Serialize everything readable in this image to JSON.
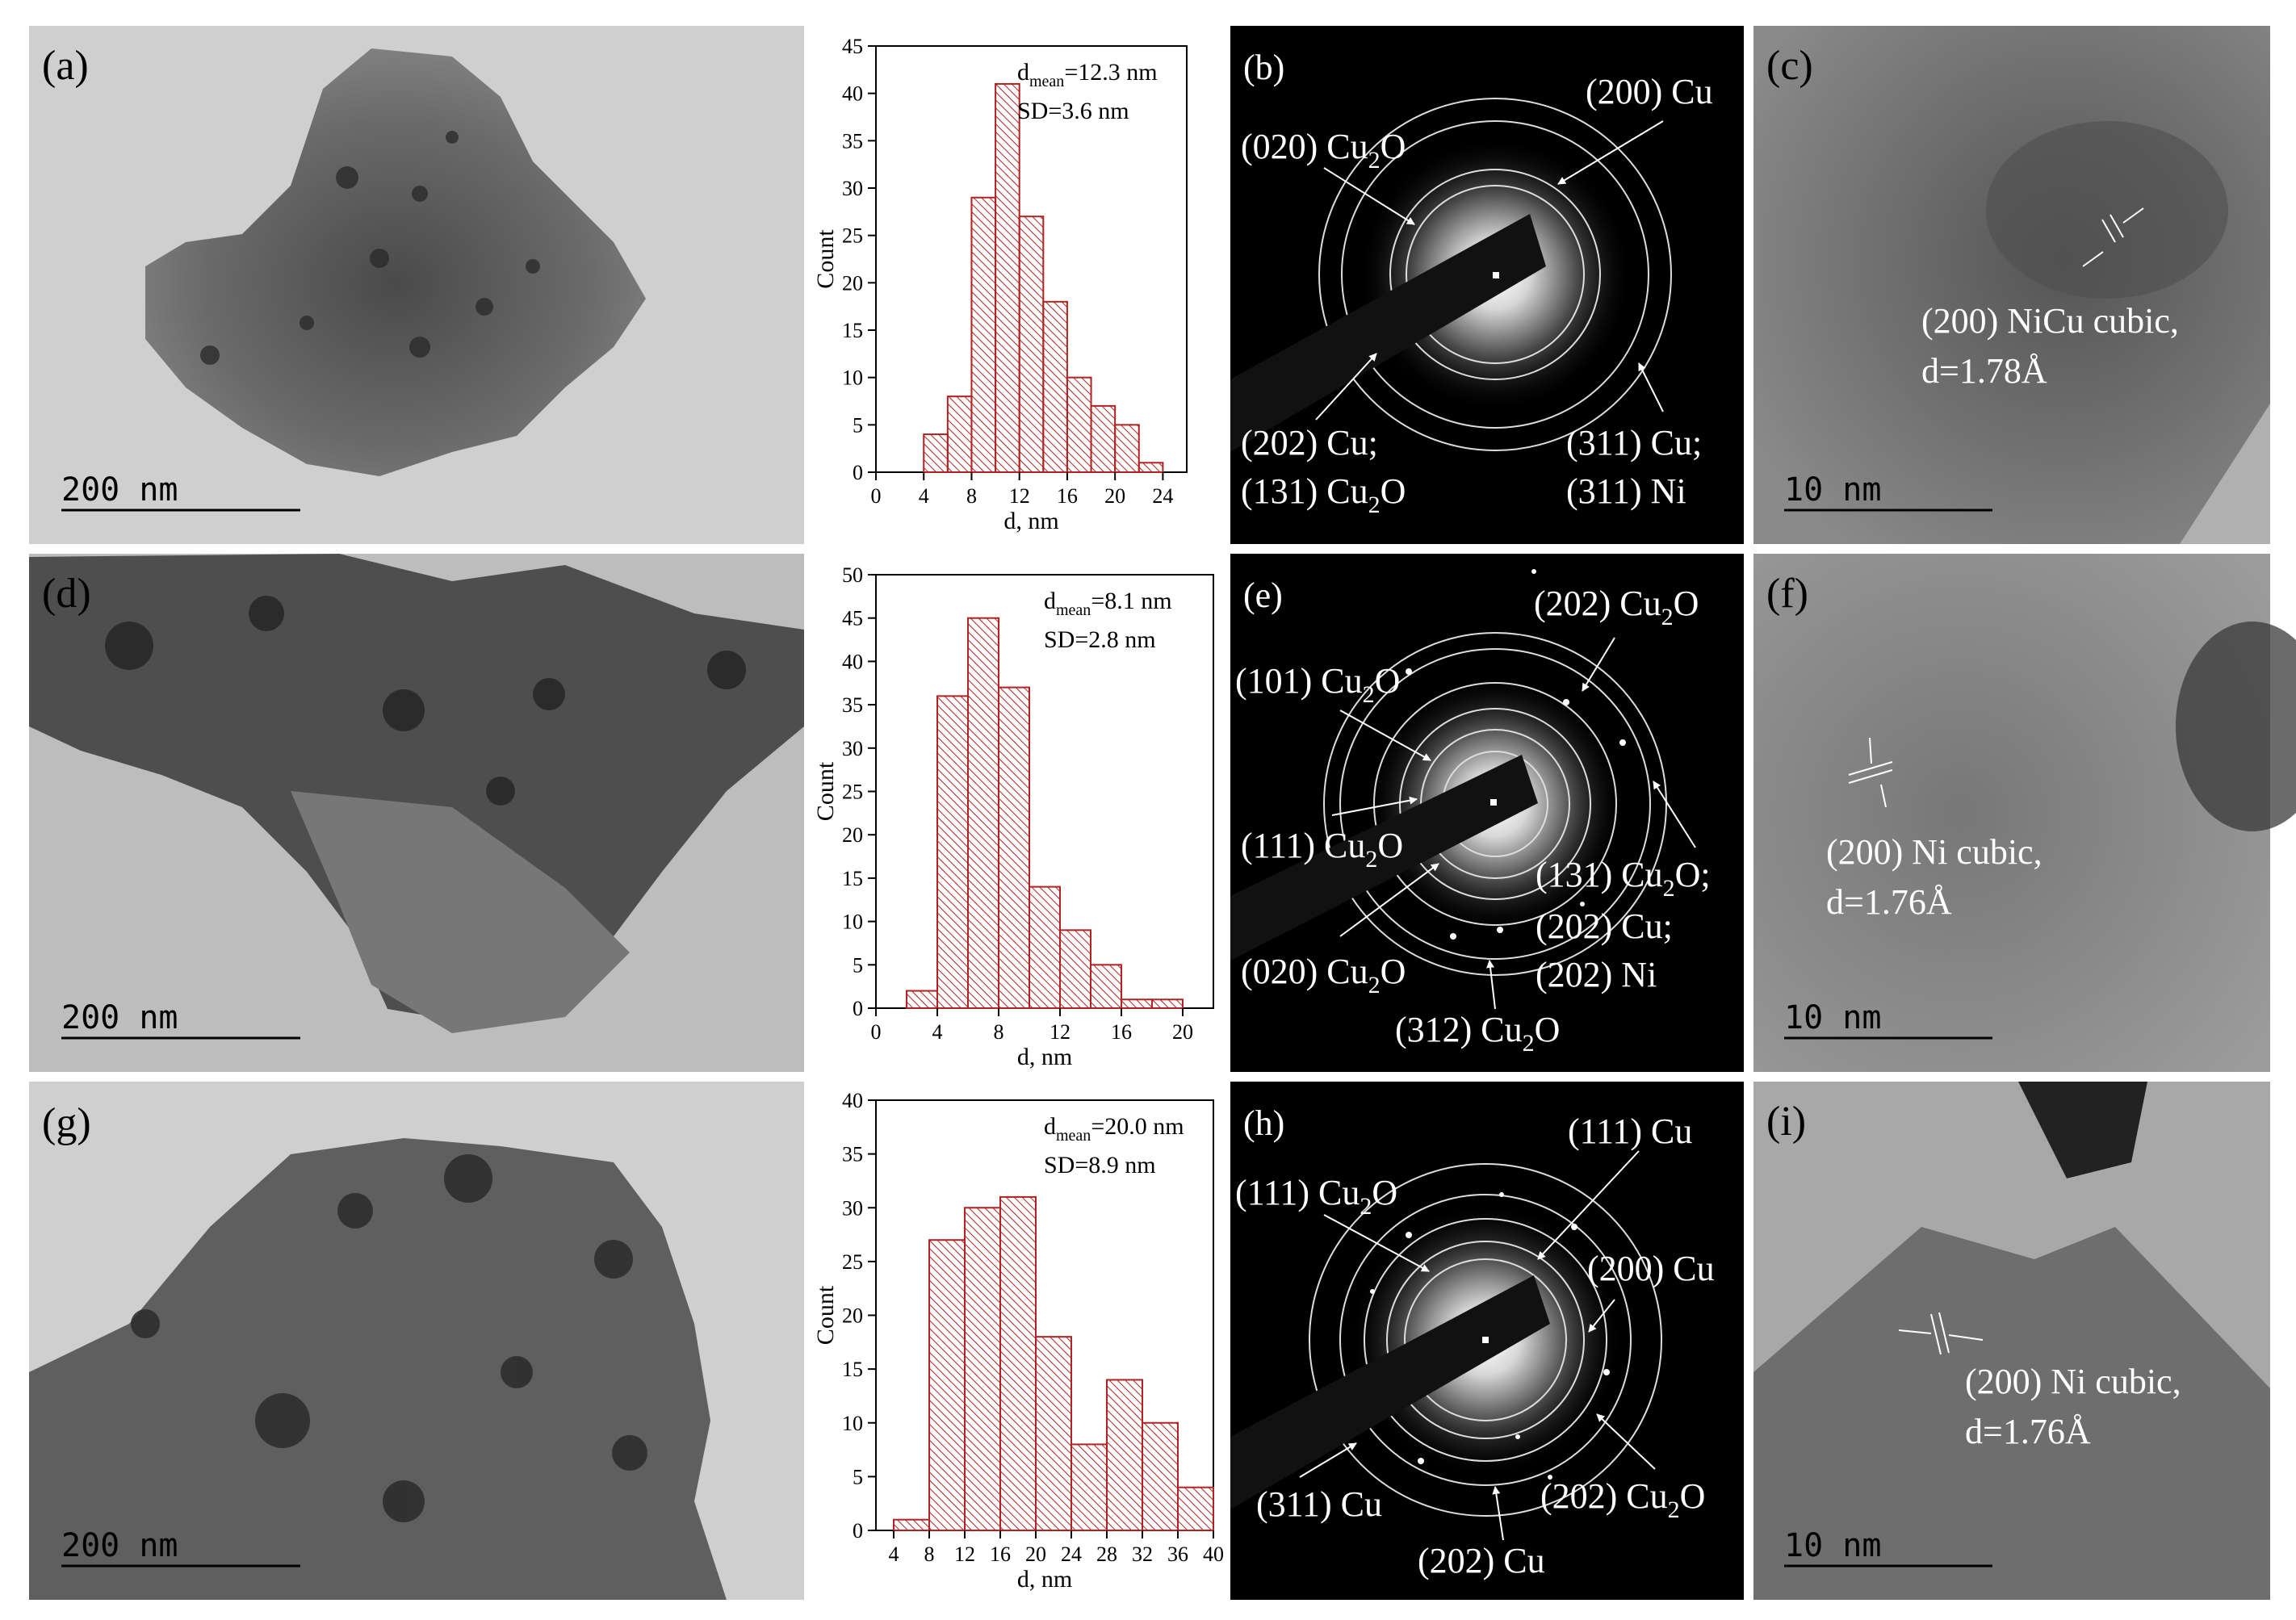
{
  "tem_panels": [
    {
      "label": "(a)",
      "scale": "200 nm"
    },
    {
      "label": "(d)",
      "scale": "200 nm"
    },
    {
      "label": "(g)",
      "scale": "200 nm"
    }
  ],
  "hrtem_panels": [
    {
      "label": "(c)",
      "scale": "10 nm",
      "annotation": [
        "(200) NiCu cubic,",
        "d=1.78Å"
      ]
    },
    {
      "label": "(f)",
      "scale": "10 nm",
      "annotation": [
        "(200) Ni cubic,",
        "d=1.76Å"
      ]
    },
    {
      "label": "(i)",
      "scale": "10 nm",
      "annotation": [
        "(200) Ni cubic,",
        "d=1.76Å"
      ]
    }
  ],
  "saed_panels": [
    {
      "label": "(b)",
      "rings": [
        "(200) Cu",
        "(020) Cu2O",
        "(202) Cu;",
        "(131) Cu2O",
        "(311) Cu;",
        "(311) Ni"
      ]
    },
    {
      "label": "(e)",
      "rings": [
        "(202) Cu2O",
        "(101) Cu2O",
        "(111) Cu2O",
        "(131) Cu2O;",
        "(202) Cu;",
        "(202) Ni",
        "(020) Cu2O",
        "(312) Cu2O"
      ]
    },
    {
      "label": "(h)",
      "rings": [
        "(111) Cu",
        "(111) Cu2O",
        "(200) Cu",
        "(202) Cu2O",
        "(311) Cu",
        "(202) Cu"
      ]
    }
  ],
  "colors": {
    "bar_stroke": "#b22222",
    "hatch": "#b22222",
    "axis": "#000000"
  },
  "chart_data": [
    {
      "type": "bar",
      "xlabel": "d, nm",
      "ylabel": "Count",
      "stats": [
        "d",
        "mean",
        "=12.3 nm",
        "SD=3.6 nm"
      ],
      "xlim": [
        0,
        26
      ],
      "ylim": [
        0,
        45
      ],
      "xticks": [
        0,
        4,
        8,
        12,
        16,
        20,
        24
      ],
      "yticks": [
        0,
        5,
        10,
        15,
        20,
        25,
        30,
        35,
        40,
        45
      ],
      "bin_width": 2,
      "bins": [
        4,
        6,
        8,
        10,
        12,
        14,
        16,
        18,
        20,
        22
      ],
      "values": [
        4,
        8,
        29,
        41,
        27,
        18,
        10,
        7,
        5,
        1
      ]
    },
    {
      "type": "bar",
      "xlabel": "d, nm",
      "ylabel": "Count",
      "stats": [
        "d",
        "mean",
        "=8.1 nm",
        "SD=2.8 nm"
      ],
      "xlim": [
        0,
        22
      ],
      "ylim": [
        0,
        50
      ],
      "xticks": [
        0,
        4,
        8,
        12,
        16,
        20
      ],
      "yticks": [
        0,
        5,
        10,
        15,
        20,
        25,
        30,
        35,
        40,
        45,
        50
      ],
      "bin_width": 2,
      "bins": [
        2,
        4,
        6,
        8,
        10,
        12,
        14,
        16,
        18
      ],
      "values": [
        2,
        36,
        45,
        37,
        14,
        9,
        5,
        1,
        1
      ]
    },
    {
      "type": "bar",
      "xlabel": "d, nm",
      "ylabel": "Count",
      "stats": [
        "d",
        "mean",
        "=20.0 nm",
        "SD=8.9 nm"
      ],
      "xlim": [
        2,
        40
      ],
      "ylim": [
        0,
        40
      ],
      "xticks": [
        4,
        8,
        12,
        16,
        20,
        24,
        28,
        32,
        36,
        40
      ],
      "yticks": [
        0,
        5,
        10,
        15,
        20,
        25,
        30,
        35,
        40
      ],
      "bin_width": 4,
      "bins": [
        4,
        8,
        12,
        16,
        20,
        24,
        28,
        32,
        36
      ],
      "values": [
        1,
        27,
        30,
        31,
        18,
        8,
        14,
        10,
        4
      ]
    }
  ]
}
